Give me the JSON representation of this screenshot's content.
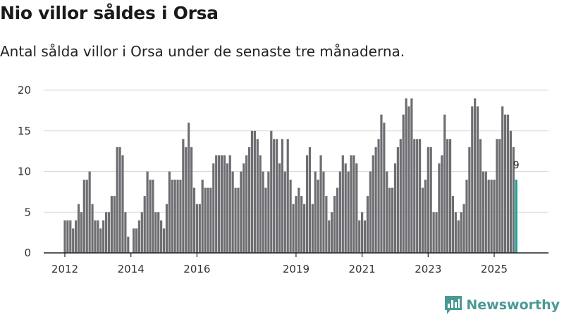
{
  "header": {
    "title": "Nio villor såldes i Orsa",
    "subtitle": "Antal sålda villor i Orsa under de senaste tre månaderna."
  },
  "brand": {
    "name": "Newsworthy",
    "color": "#4a9a94"
  },
  "colors": {
    "bar": "#6e6d72",
    "highlight": "#12a394",
    "grid": "#d9d9d9",
    "axis": "#222222"
  },
  "chart_data": {
    "type": "bar",
    "title": "Nio villor såldes i Orsa",
    "xlabel": "",
    "ylabel": "",
    "ylim": [
      0,
      20
    ],
    "yticks": [
      0,
      5,
      10,
      15,
      20
    ],
    "x_range": [
      2011.583,
      2026.083
    ],
    "xtick_labels": [
      {
        "label": "2012",
        "x": 2012.0
      },
      {
        "label": "2014",
        "x": 2014.0
      },
      {
        "label": "2016",
        "x": 2016.0
      },
      {
        "label": "2019",
        "x": 2019.0
      },
      {
        "label": "2021",
        "x": 2021.0
      },
      {
        "label": "2023",
        "x": 2023.0
      },
      {
        "label": "2025",
        "x": 2025.0
      }
    ],
    "start": "2012-01",
    "frequency": "monthly",
    "series": [
      {
        "name": "Antal sålda villor",
        "values": [
          4,
          4,
          4,
          3,
          4,
          6,
          5,
          9,
          9,
          10,
          6,
          4,
          4,
          3,
          4,
          5,
          5,
          7,
          7,
          13,
          13,
          12,
          5,
          2,
          0,
          3,
          3,
          4,
          5,
          7,
          10,
          9,
          9,
          5,
          5,
          4,
          3,
          6,
          10,
          9,
          9,
          9,
          9,
          14,
          13,
          16,
          13,
          8,
          6,
          6,
          9,
          8,
          8,
          8,
          11,
          12,
          12,
          12,
          12,
          11,
          12,
          10,
          8,
          8,
          10,
          11,
          12,
          13,
          15,
          15,
          14,
          12,
          10,
          8,
          10,
          15,
          14,
          14,
          11,
          14,
          10,
          14,
          9,
          6,
          7,
          8,
          7,
          6,
          12,
          13,
          6,
          10,
          9,
          12,
          10,
          7,
          4,
          5,
          7,
          8,
          10,
          12,
          11,
          10,
          12,
          12,
          11,
          4,
          5,
          4,
          7,
          10,
          12,
          13,
          14,
          17,
          16,
          10,
          8,
          8,
          11,
          13,
          14,
          17,
          19,
          18,
          19,
          14,
          14,
          14,
          8,
          9,
          13,
          13,
          5,
          5,
          11,
          12,
          17,
          14,
          14,
          7,
          5,
          4,
          5,
          6,
          9,
          13,
          18,
          19,
          18,
          14,
          10,
          10,
          9,
          9,
          9,
          14,
          14,
          18,
          17,
          17,
          15,
          13,
          9
        ]
      }
    ],
    "highlight_last": true,
    "annotations": [
      {
        "label": "9"
      }
    ]
  }
}
